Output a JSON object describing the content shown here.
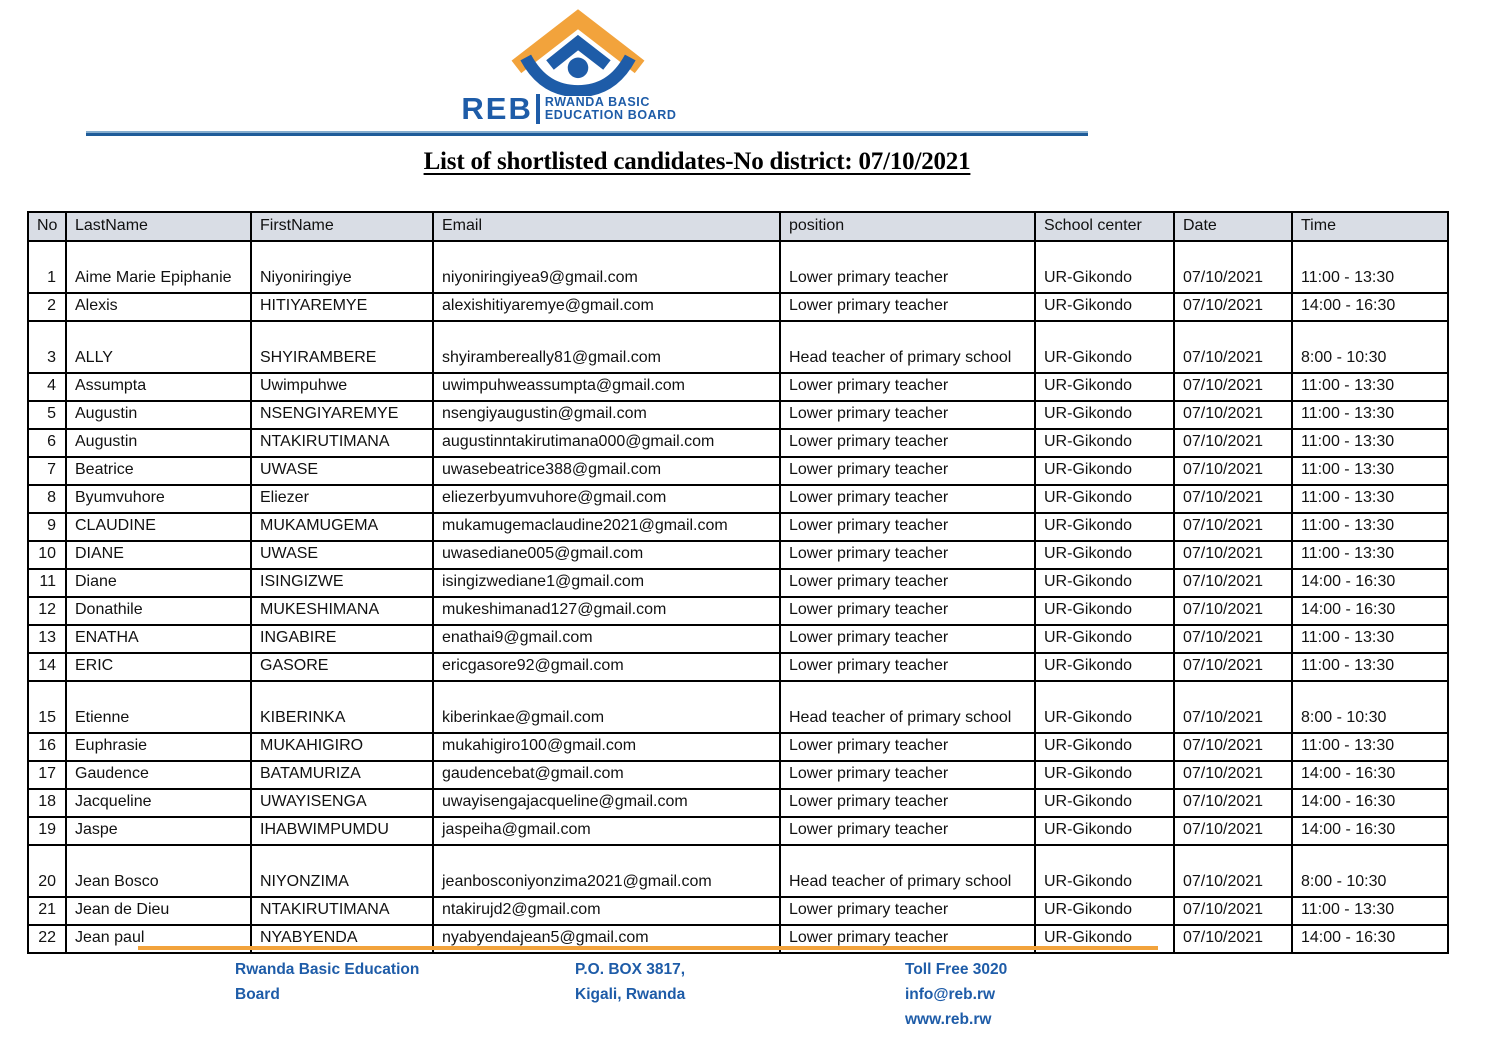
{
  "logo": {
    "acronym": "REB",
    "name_line1": "RWANDA BASIC",
    "name_line2": "EDUCATION BOARD"
  },
  "colors": {
    "blue": "#1E5CA8",
    "orange": "#F2A33C",
    "header_fill": "#D9DDE5"
  },
  "title": "List of shortlisted candidates-No district: 07/10/2021",
  "table": {
    "columns": [
      {
        "key": "no",
        "label": "No"
      },
      {
        "key": "last_name",
        "label": "LastName"
      },
      {
        "key": "first_name",
        "label": "FirstName"
      },
      {
        "key": "email",
        "label": "Email"
      },
      {
        "key": "position",
        "label": "position"
      },
      {
        "key": "school_center",
        "label": "School center"
      },
      {
        "key": "date",
        "label": "Date"
      },
      {
        "key": "time",
        "label": "Time"
      }
    ],
    "rows": [
      {
        "no": "1",
        "last_name": "Aime Marie Epiphanie",
        "first_name": "Niyoniringiye",
        "email": "niyoniringiyea9@gmail.com",
        "position": "Lower primary teacher",
        "school_center": "UR-Gikondo",
        "date": "07/10/2021",
        "time": "11:00 - 13:30"
      },
      {
        "no": "2",
        "last_name": "Alexis",
        "first_name": "HITIYAREMYE",
        "email": "alexishitiyaremye@gmail.com",
        "position": "Lower primary teacher",
        "school_center": "UR-Gikondo",
        "date": "07/10/2021",
        "time": "14:00 - 16:30"
      },
      {
        "no": "3",
        "last_name": "ALLY",
        "first_name": "SHYIRAMBERE",
        "email": "shyirambereally81@gmail.com",
        "position": "Head teacher of primary school",
        "school_center": "UR-Gikondo",
        "date": "07/10/2021",
        "time": "8:00 - 10:30"
      },
      {
        "no": "4",
        "last_name": "Assumpta",
        "first_name": "Uwimpuhwe",
        "email": "uwimpuhweassumpta@gmail.com",
        "position": "Lower primary teacher",
        "school_center": "UR-Gikondo",
        "date": "07/10/2021",
        "time": "11:00 - 13:30"
      },
      {
        "no": "5",
        "last_name": "Augustin",
        "first_name": "NSENGIYAREMYE",
        "email": "nsengiyaugustin@gmail.com",
        "position": "Lower primary teacher",
        "school_center": "UR-Gikondo",
        "date": "07/10/2021",
        "time": "11:00 - 13:30"
      },
      {
        "no": "6",
        "last_name": "Augustin",
        "first_name": "NTAKIRUTIMANA",
        "email": "augustinntakirutimana000@gmail.com",
        "position": "Lower primary teacher",
        "school_center": "UR-Gikondo",
        "date": "07/10/2021",
        "time": "11:00 - 13:30"
      },
      {
        "no": "7",
        "last_name": "Beatrice",
        "first_name": "UWASE",
        "email": "uwasebeatrice388@gmail.com",
        "position": "Lower primary teacher",
        "school_center": "UR-Gikondo",
        "date": "07/10/2021",
        "time": "11:00 - 13:30"
      },
      {
        "no": "8",
        "last_name": "Byumvuhore",
        "first_name": "Eliezer",
        "email": "eliezerbyumvuhore@gmail.com",
        "position": "Lower primary teacher",
        "school_center": "UR-Gikondo",
        "date": "07/10/2021",
        "time": "11:00 - 13:30"
      },
      {
        "no": "9",
        "last_name": "CLAUDINE",
        "first_name": "MUKAMUGEMA",
        "email": "mukamugemaclaudine2021@gmail.com",
        "position": "Lower primary teacher",
        "school_center": "UR-Gikondo",
        "date": "07/10/2021",
        "time": "11:00 - 13:30"
      },
      {
        "no": "10",
        "last_name": "DIANE",
        "first_name": "UWASE",
        "email": "uwasediane005@gmail.com",
        "position": "Lower primary teacher",
        "school_center": "UR-Gikondo",
        "date": "07/10/2021",
        "time": "11:00 - 13:30"
      },
      {
        "no": "11",
        "last_name": "Diane",
        "first_name": "ISINGIZWE",
        "email": "isingizwediane1@gmail.com",
        "position": "Lower primary teacher",
        "school_center": "UR-Gikondo",
        "date": "07/10/2021",
        "time": "14:00 - 16:30"
      },
      {
        "no": "12",
        "last_name": "Donathile",
        "first_name": "MUKESHIMANA",
        "email": "mukeshimanad127@gmail.com",
        "position": "Lower primary teacher",
        "school_center": "UR-Gikondo",
        "date": "07/10/2021",
        "time": "14:00 - 16:30"
      },
      {
        "no": "13",
        "last_name": "ENATHA",
        "first_name": "INGABIRE",
        "email": "enathai9@gmail.com",
        "position": "Lower primary teacher",
        "school_center": "UR-Gikondo",
        "date": "07/10/2021",
        "time": "11:00 - 13:30"
      },
      {
        "no": "14",
        "last_name": "ERIC",
        "first_name": "GASORE",
        "email": "ericgasore92@gmail.com",
        "position": "Lower primary teacher",
        "school_center": "UR-Gikondo",
        "date": "07/10/2021",
        "time": "11:00 - 13:30"
      },
      {
        "no": "15",
        "last_name": "Etienne",
        "first_name": "KIBERINKA",
        "email": "kiberinkae@gmail.com",
        "position": "Head teacher of primary school",
        "school_center": "UR-Gikondo",
        "date": "07/10/2021",
        "time": "8:00 - 10:30"
      },
      {
        "no": "16",
        "last_name": "Euphrasie",
        "first_name": "MUKAHIGIRO",
        "email": "mukahigiro100@gmail.com",
        "position": "Lower primary teacher",
        "school_center": "UR-Gikondo",
        "date": "07/10/2021",
        "time": "11:00 - 13:30"
      },
      {
        "no": "17",
        "last_name": "Gaudence",
        "first_name": "BATAMURIZA",
        "email": "gaudencebat@gmail.com",
        "position": "Lower primary teacher",
        "school_center": "UR-Gikondo",
        "date": "07/10/2021",
        "time": "14:00 - 16:30"
      },
      {
        "no": "18",
        "last_name": "Jacqueline",
        "first_name": "UWAYISENGA",
        "email": "uwayisengajacqueline@gmail.com",
        "position": "Lower primary teacher",
        "school_center": "UR-Gikondo",
        "date": "07/10/2021",
        "time": "14:00 - 16:30"
      },
      {
        "no": "19",
        "last_name": "Jaspe",
        "first_name": "IHABWIMPUMDU",
        "email": "jaspeiha@gmail.com",
        "position": "Lower primary teacher",
        "school_center": "UR-Gikondo",
        "date": "07/10/2021",
        "time": "14:00 - 16:30"
      },
      {
        "no": "20",
        "last_name": "Jean Bosco",
        "first_name": "NIYONZIMA",
        "email": "jeanbosconiyonzima2021@gmail.com",
        "position": "Head teacher of primary school",
        "school_center": "UR-Gikondo",
        "date": "07/10/2021",
        "time": "8:00 - 10:30"
      },
      {
        "no": "21",
        "last_name": "Jean de Dieu",
        "first_name": "NTAKIRUTIMANA",
        "email": "ntakirujd2@gmail.com",
        "position": "Lower primary teacher",
        "school_center": "UR-Gikondo",
        "date": "07/10/2021",
        "time": "11:00 - 13:30"
      },
      {
        "no": "22",
        "last_name": "Jean paul",
        "first_name": "NYABYENDA",
        "email": "nyabyendajean5@gmail.com",
        "position": "Lower primary teacher",
        "school_center": "UR-Gikondo",
        "date": "07/10/2021",
        "time": "14:00 - 16:30"
      }
    ]
  },
  "footer": {
    "org_line1": "Rwanda Basic Education",
    "org_line2": "Board",
    "address_line1": "P.O. BOX 3817,",
    "address_line2": "Kigali, Rwanda",
    "toll_free": "Toll Free 3020",
    "email": "info@reb.rw",
    "website": "www.reb.rw"
  }
}
